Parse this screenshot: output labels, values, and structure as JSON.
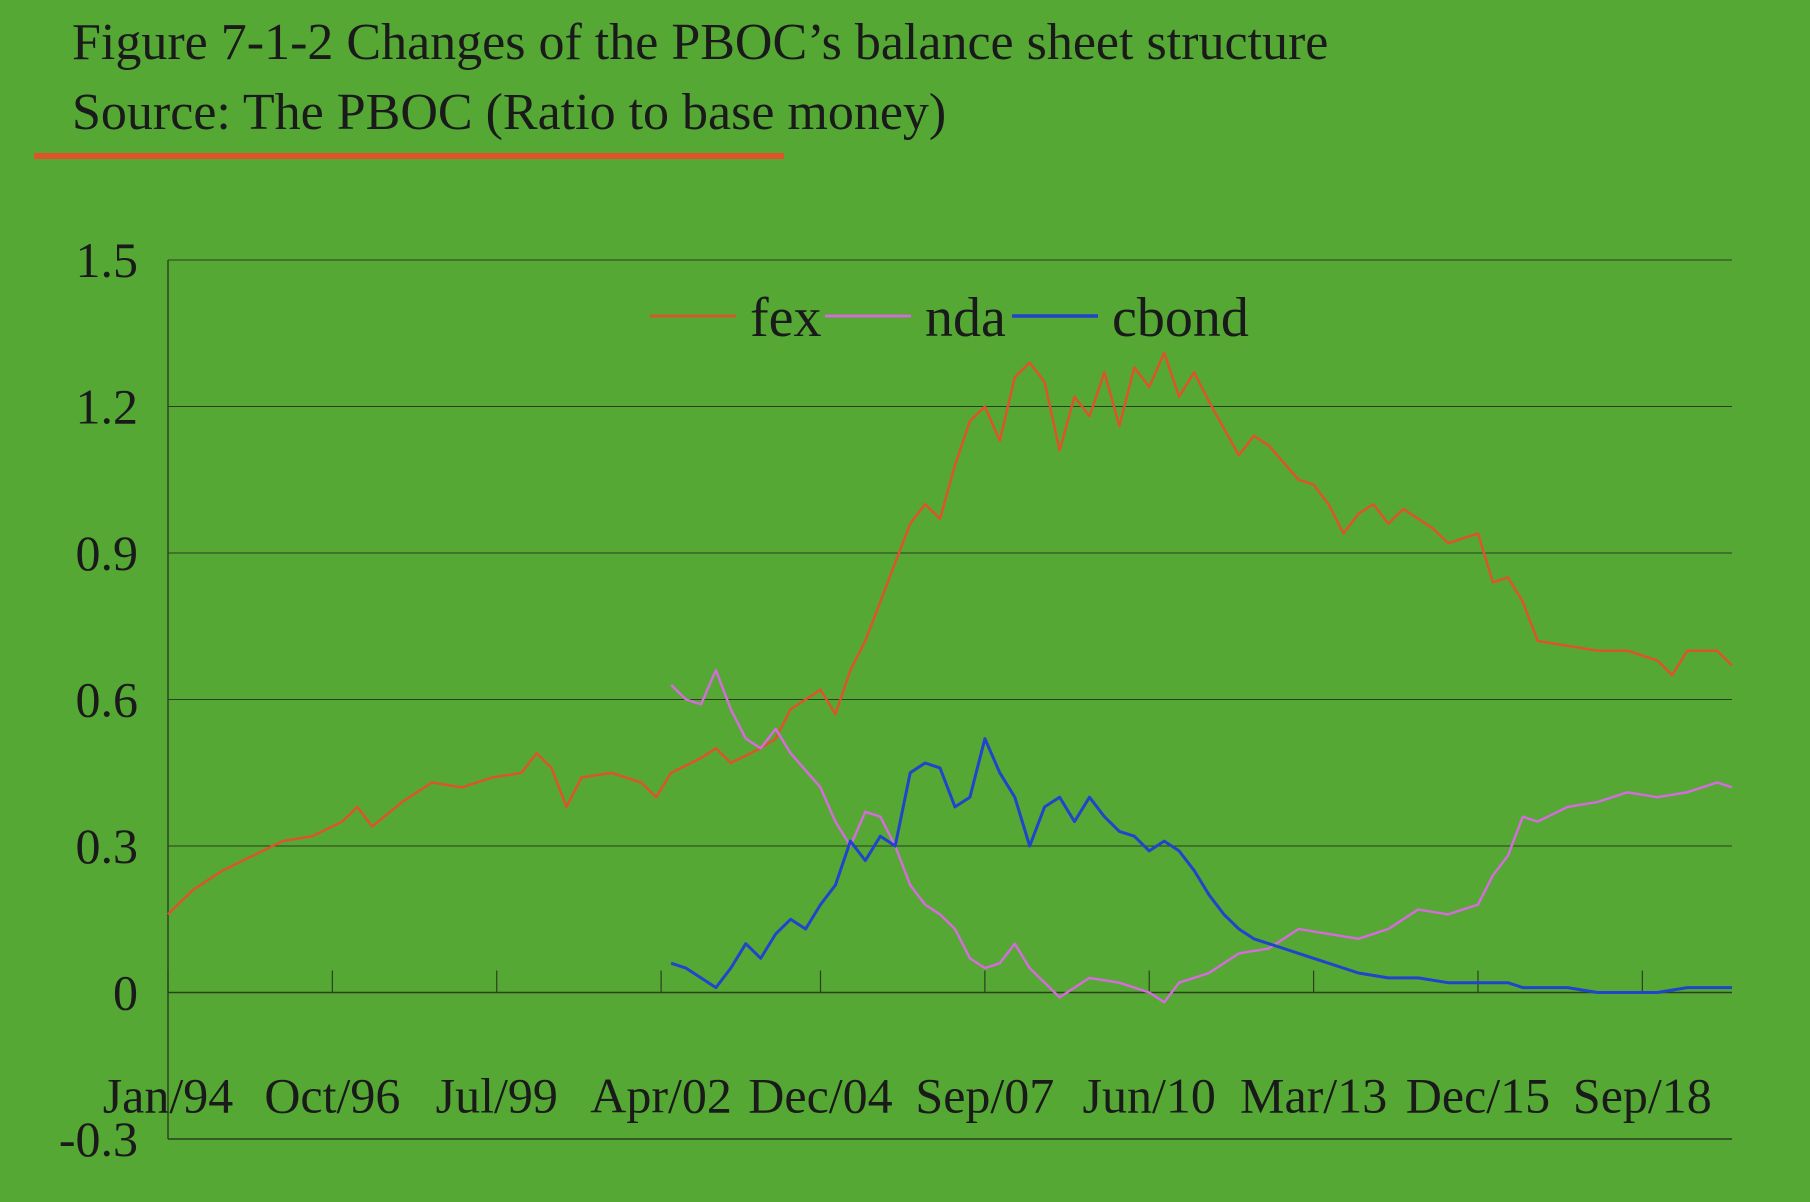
{
  "header": {
    "title": "Figure 7-1-2 Changes of the PBOC’s balance sheet structure",
    "subtitle": "Source: The PBOC (Ratio to base money)"
  },
  "chart_data": {
    "type": "line",
    "title": "Figure 7-1-2 Changes of the PBOC’s balance sheet structure",
    "subtitle": "Source: The PBOC (Ratio to base money)",
    "xlabel": "",
    "ylabel": "",
    "ylim": [
      -0.3,
      1.5
    ],
    "yticks": [
      1.5,
      1.2,
      0.9,
      0.6,
      0.3,
      0,
      -0.3
    ],
    "ytick_labels": [
      "1.5",
      "1.2",
      "0.9",
      "0.6",
      "0.3",
      "0",
      "-0.3"
    ],
    "xlim": [
      "1994-01",
      "2020-03"
    ],
    "xtick_labels": [
      "Jan/94",
      "Oct/96",
      "Jul/99",
      "Apr/02",
      "Dec/04",
      "Sep/07",
      "Jun/10",
      "Mar/13",
      "Dec/15",
      "Sep/18"
    ],
    "xtick_dates": [
      "1994-01",
      "1996-10",
      "1999-07",
      "2002-04",
      "2004-12",
      "2007-09",
      "2010-06",
      "2013-03",
      "2015-12",
      "2018-09"
    ],
    "grid": "horizontal",
    "legend": "top-center",
    "series": [
      {
        "name": "fex",
        "color": "#e0522a",
        "points": [
          [
            "1994-01",
            0.16
          ],
          [
            "1994-06",
            0.21
          ],
          [
            "1994-12",
            0.25
          ],
          [
            "1995-06",
            0.28
          ],
          [
            "1995-12",
            0.31
          ],
          [
            "1996-06",
            0.32
          ],
          [
            "1996-12",
            0.35
          ],
          [
            "1997-03",
            0.38
          ],
          [
            "1997-06",
            0.34
          ],
          [
            "1997-12",
            0.39
          ],
          [
            "1998-06",
            0.43
          ],
          [
            "1998-12",
            0.42
          ],
          [
            "1999-06",
            0.44
          ],
          [
            "1999-12",
            0.45
          ],
          [
            "2000-03",
            0.49
          ],
          [
            "2000-06",
            0.46
          ],
          [
            "2000-09",
            0.38
          ],
          [
            "2000-12",
            0.44
          ],
          [
            "2001-06",
            0.45
          ],
          [
            "2001-12",
            0.43
          ],
          [
            "2002-03",
            0.4
          ],
          [
            "2002-06",
            0.45
          ],
          [
            "2002-12",
            0.48
          ],
          [
            "2003-03",
            0.5
          ],
          [
            "2003-06",
            0.47
          ],
          [
            "2003-12",
            0.5
          ],
          [
            "2004-03",
            0.52
          ],
          [
            "2004-06",
            0.58
          ],
          [
            "2004-12",
            0.62
          ],
          [
            "2005-03",
            0.57
          ],
          [
            "2005-06",
            0.66
          ],
          [
            "2005-09",
            0.72
          ],
          [
            "2005-12",
            0.8
          ],
          [
            "2006-03",
            0.88
          ],
          [
            "2006-06",
            0.96
          ],
          [
            "2006-09",
            1.0
          ],
          [
            "2006-12",
            0.97
          ],
          [
            "2007-03",
            1.08
          ],
          [
            "2007-06",
            1.17
          ],
          [
            "2007-09",
            1.2
          ],
          [
            "2007-12",
            1.13
          ],
          [
            "2008-03",
            1.26
          ],
          [
            "2008-06",
            1.29
          ],
          [
            "2008-09",
            1.25
          ],
          [
            "2008-12",
            1.11
          ],
          [
            "2009-03",
            1.22
          ],
          [
            "2009-06",
            1.18
          ],
          [
            "2009-09",
            1.27
          ],
          [
            "2009-12",
            1.16
          ],
          [
            "2010-03",
            1.28
          ],
          [
            "2010-06",
            1.24
          ],
          [
            "2010-09",
            1.31
          ],
          [
            "2010-12",
            1.22
          ],
          [
            "2011-03",
            1.27
          ],
          [
            "2011-06",
            1.21
          ],
          [
            "2011-12",
            1.1
          ],
          [
            "2012-03",
            1.14
          ],
          [
            "2012-06",
            1.12
          ],
          [
            "2012-12",
            1.05
          ],
          [
            "2013-03",
            1.04
          ],
          [
            "2013-06",
            1.0
          ],
          [
            "2013-09",
            0.94
          ],
          [
            "2013-12",
            0.98
          ],
          [
            "2014-03",
            1.0
          ],
          [
            "2014-06",
            0.96
          ],
          [
            "2014-09",
            0.99
          ],
          [
            "2014-12",
            0.97
          ],
          [
            "2015-03",
            0.95
          ],
          [
            "2015-06",
            0.92
          ],
          [
            "2015-09",
            0.93
          ],
          [
            "2015-12",
            0.94
          ],
          [
            "2016-03",
            0.84
          ],
          [
            "2016-06",
            0.85
          ],
          [
            "2016-09",
            0.8
          ],
          [
            "2016-12",
            0.72
          ],
          [
            "2017-06",
            0.71
          ],
          [
            "2017-12",
            0.7
          ],
          [
            "2018-06",
            0.7
          ],
          [
            "2018-12",
            0.68
          ],
          [
            "2019-03",
            0.65
          ],
          [
            "2019-06",
            0.7
          ],
          [
            "2019-12",
            0.7
          ],
          [
            "2020-03",
            0.67
          ]
        ]
      },
      {
        "name": "nda",
        "color": "#d86ae0",
        "points": [
          [
            "2002-06",
            0.63
          ],
          [
            "2002-09",
            0.6
          ],
          [
            "2002-12",
            0.59
          ],
          [
            "2003-03",
            0.66
          ],
          [
            "2003-06",
            0.58
          ],
          [
            "2003-09",
            0.52
          ],
          [
            "2003-12",
            0.5
          ],
          [
            "2004-03",
            0.54
          ],
          [
            "2004-06",
            0.49
          ],
          [
            "2004-12",
            0.42
          ],
          [
            "2005-03",
            0.35
          ],
          [
            "2005-06",
            0.3
          ],
          [
            "2005-09",
            0.37
          ],
          [
            "2005-12",
            0.36
          ],
          [
            "2006-03",
            0.3
          ],
          [
            "2006-06",
            0.22
          ],
          [
            "2006-09",
            0.18
          ],
          [
            "2006-12",
            0.16
          ],
          [
            "2007-03",
            0.13
          ],
          [
            "2007-06",
            0.07
          ],
          [
            "2007-09",
            0.05
          ],
          [
            "2007-12",
            0.06
          ],
          [
            "2008-03",
            0.1
          ],
          [
            "2008-06",
            0.05
          ],
          [
            "2008-09",
            0.02
          ],
          [
            "2008-12",
            -0.01
          ],
          [
            "2009-03",
            0.01
          ],
          [
            "2009-06",
            0.03
          ],
          [
            "2009-12",
            0.02
          ],
          [
            "2010-06",
            0.0
          ],
          [
            "2010-09",
            -0.02
          ],
          [
            "2010-12",
            0.02
          ],
          [
            "2011-06",
            0.04
          ],
          [
            "2011-12",
            0.08
          ],
          [
            "2012-06",
            0.09
          ],
          [
            "2012-12",
            0.13
          ],
          [
            "2013-06",
            0.12
          ],
          [
            "2013-12",
            0.11
          ],
          [
            "2014-06",
            0.13
          ],
          [
            "2014-12",
            0.17
          ],
          [
            "2015-06",
            0.16
          ],
          [
            "2015-12",
            0.18
          ],
          [
            "2016-03",
            0.24
          ],
          [
            "2016-06",
            0.28
          ],
          [
            "2016-09",
            0.36
          ],
          [
            "2016-12",
            0.35
          ],
          [
            "2017-06",
            0.38
          ],
          [
            "2017-12",
            0.39
          ],
          [
            "2018-06",
            0.41
          ],
          [
            "2018-12",
            0.4
          ],
          [
            "2019-06",
            0.41
          ],
          [
            "2019-12",
            0.43
          ],
          [
            "2020-03",
            0.42
          ]
        ]
      },
      {
        "name": "cbond",
        "color": "#2244cc",
        "points": [
          [
            "2002-06",
            0.06
          ],
          [
            "2002-09",
            0.05
          ],
          [
            "2002-12",
            0.03
          ],
          [
            "2003-03",
            0.01
          ],
          [
            "2003-06",
            0.05
          ],
          [
            "2003-09",
            0.1
          ],
          [
            "2003-12",
            0.07
          ],
          [
            "2004-03",
            0.12
          ],
          [
            "2004-06",
            0.15
          ],
          [
            "2004-09",
            0.13
          ],
          [
            "2004-12",
            0.18
          ],
          [
            "2005-03",
            0.22
          ],
          [
            "2005-06",
            0.31
          ],
          [
            "2005-09",
            0.27
          ],
          [
            "2005-12",
            0.32
          ],
          [
            "2006-03",
            0.3
          ],
          [
            "2006-06",
            0.45
          ],
          [
            "2006-09",
            0.47
          ],
          [
            "2006-12",
            0.46
          ],
          [
            "2007-03",
            0.38
          ],
          [
            "2007-06",
            0.4
          ],
          [
            "2007-09",
            0.52
          ],
          [
            "2007-12",
            0.45
          ],
          [
            "2008-03",
            0.4
          ],
          [
            "2008-06",
            0.3
          ],
          [
            "2008-09",
            0.38
          ],
          [
            "2008-12",
            0.4
          ],
          [
            "2009-03",
            0.35
          ],
          [
            "2009-06",
            0.4
          ],
          [
            "2009-09",
            0.36
          ],
          [
            "2009-12",
            0.33
          ],
          [
            "2010-03",
            0.32
          ],
          [
            "2010-06",
            0.29
          ],
          [
            "2010-09",
            0.31
          ],
          [
            "2010-12",
            0.29
          ],
          [
            "2011-03",
            0.25
          ],
          [
            "2011-06",
            0.2
          ],
          [
            "2011-09",
            0.16
          ],
          [
            "2011-12",
            0.13
          ],
          [
            "2012-03",
            0.11
          ],
          [
            "2012-06",
            0.1
          ],
          [
            "2012-09",
            0.09
          ],
          [
            "2012-12",
            0.08
          ],
          [
            "2013-06",
            0.06
          ],
          [
            "2013-12",
            0.04
          ],
          [
            "2014-06",
            0.03
          ],
          [
            "2014-12",
            0.03
          ],
          [
            "2015-06",
            0.02
          ],
          [
            "2015-12",
            0.02
          ],
          [
            "2016-06",
            0.02
          ],
          [
            "2016-09",
            0.01
          ],
          [
            "2017-06",
            0.01
          ],
          [
            "2017-12",
            0.0
          ],
          [
            "2018-06",
            0.0
          ],
          [
            "2018-12",
            0.0
          ],
          [
            "2019-06",
            0.01
          ],
          [
            "2020-03",
            0.01
          ]
        ]
      }
    ]
  }
}
